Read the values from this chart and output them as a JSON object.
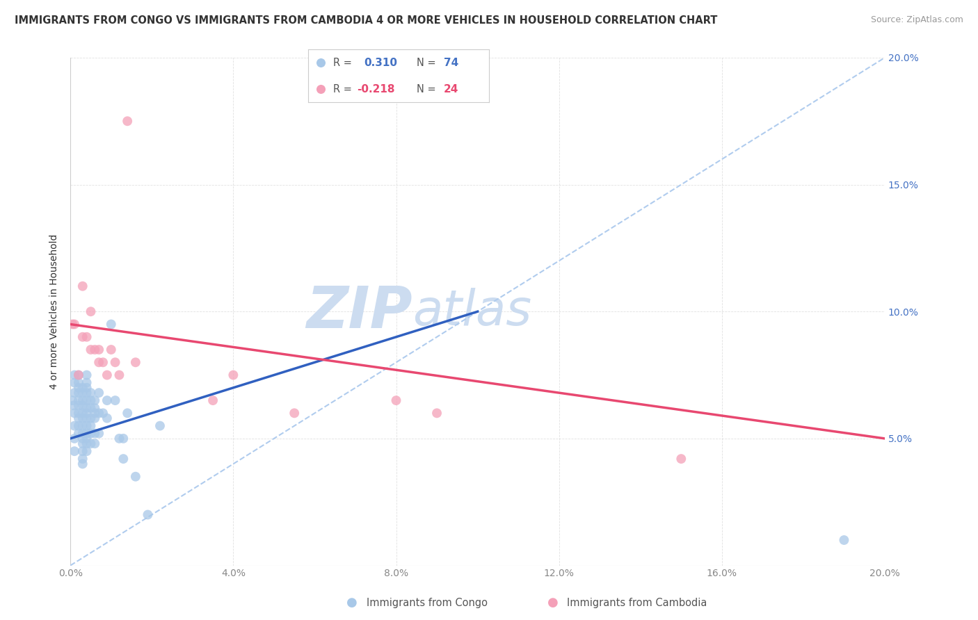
{
  "title": "IMMIGRANTS FROM CONGO VS IMMIGRANTS FROM CAMBODIA 4 OR MORE VEHICLES IN HOUSEHOLD CORRELATION CHART",
  "source": "Source: ZipAtlas.com",
  "ylabel": "4 or more Vehicles in Household",
  "xlim": [
    0.0,
    0.2
  ],
  "ylim": [
    0.0,
    0.2
  ],
  "xticks": [
    0.0,
    0.04,
    0.08,
    0.12,
    0.16,
    0.2
  ],
  "yticks": [
    0.0,
    0.05,
    0.1,
    0.15,
    0.2
  ],
  "xtick_labels": [
    "0.0%",
    "4.0%",
    "8.0%",
    "12.0%",
    "16.0%",
    "20.0%"
  ],
  "ytick_labels_right": [
    "",
    "5.0%",
    "10.0%",
    "15.0%",
    "20.0%"
  ],
  "congo_color": "#a8c8e8",
  "cambodia_color": "#f4a0b8",
  "congo_line_color": "#3060c0",
  "cambodia_line_color": "#e84870",
  "dashed_line_color": "#b0ccee",
  "watermark_color": "#ccdcf0",
  "congo_x": [
    0.0005,
    0.0008,
    0.001,
    0.001,
    0.001,
    0.001,
    0.001,
    0.001,
    0.001,
    0.002,
    0.002,
    0.002,
    0.002,
    0.002,
    0.002,
    0.002,
    0.002,
    0.002,
    0.002,
    0.003,
    0.003,
    0.003,
    0.003,
    0.003,
    0.003,
    0.003,
    0.003,
    0.003,
    0.003,
    0.003,
    0.003,
    0.003,
    0.004,
    0.004,
    0.004,
    0.004,
    0.004,
    0.004,
    0.004,
    0.004,
    0.004,
    0.004,
    0.004,
    0.004,
    0.004,
    0.005,
    0.005,
    0.005,
    0.005,
    0.005,
    0.005,
    0.005,
    0.006,
    0.006,
    0.006,
    0.006,
    0.006,
    0.006,
    0.007,
    0.007,
    0.007,
    0.008,
    0.009,
    0.009,
    0.01,
    0.011,
    0.012,
    0.013,
    0.013,
    0.014,
    0.016,
    0.019,
    0.022,
    0.19
  ],
  "congo_y": [
    0.065,
    0.063,
    0.068,
    0.072,
    0.075,
    0.06,
    0.055,
    0.05,
    0.045,
    0.075,
    0.072,
    0.07,
    0.068,
    0.065,
    0.063,
    0.06,
    0.058,
    0.055,
    0.052,
    0.07,
    0.068,
    0.065,
    0.063,
    0.06,
    0.058,
    0.055,
    0.052,
    0.05,
    0.048,
    0.045,
    0.042,
    0.04,
    0.075,
    0.072,
    0.07,
    0.068,
    0.065,
    0.062,
    0.06,
    0.058,
    0.055,
    0.052,
    0.05,
    0.048,
    0.045,
    0.068,
    0.065,
    0.062,
    0.058,
    0.055,
    0.052,
    0.048,
    0.065,
    0.062,
    0.06,
    0.058,
    0.052,
    0.048,
    0.068,
    0.06,
    0.052,
    0.06,
    0.065,
    0.058,
    0.095,
    0.065,
    0.05,
    0.05,
    0.042,
    0.06,
    0.035,
    0.02,
    0.055,
    0.01
  ],
  "cambodia_x": [
    0.0005,
    0.001,
    0.002,
    0.003,
    0.003,
    0.004,
    0.005,
    0.005,
    0.006,
    0.007,
    0.007,
    0.008,
    0.009,
    0.01,
    0.011,
    0.012,
    0.014,
    0.016,
    0.035,
    0.04,
    0.055,
    0.08,
    0.09,
    0.15
  ],
  "cambodia_y": [
    0.095,
    0.095,
    0.075,
    0.11,
    0.09,
    0.09,
    0.1,
    0.085,
    0.085,
    0.08,
    0.085,
    0.08,
    0.075,
    0.085,
    0.08,
    0.075,
    0.175,
    0.08,
    0.065,
    0.075,
    0.06,
    0.065,
    0.06,
    0.042
  ],
  "congo_line_x0": 0.0,
  "congo_line_y0": 0.05,
  "congo_line_x1": 0.1,
  "congo_line_y1": 0.1,
  "cambodia_line_x0": 0.0,
  "cambodia_line_y0": 0.095,
  "cambodia_line_x1": 0.2,
  "cambodia_line_y1": 0.05,
  "dashed_line_x0": 0.0,
  "dashed_line_y0": 0.0,
  "dashed_line_x1": 0.2,
  "dashed_line_y1": 0.2,
  "background_color": "#ffffff",
  "grid_color": "#cccccc",
  "title_fontsize": 10.5,
  "source_fontsize": 9,
  "tick_fontsize": 10,
  "ylabel_fontsize": 10,
  "watermark_fontsize": 60
}
